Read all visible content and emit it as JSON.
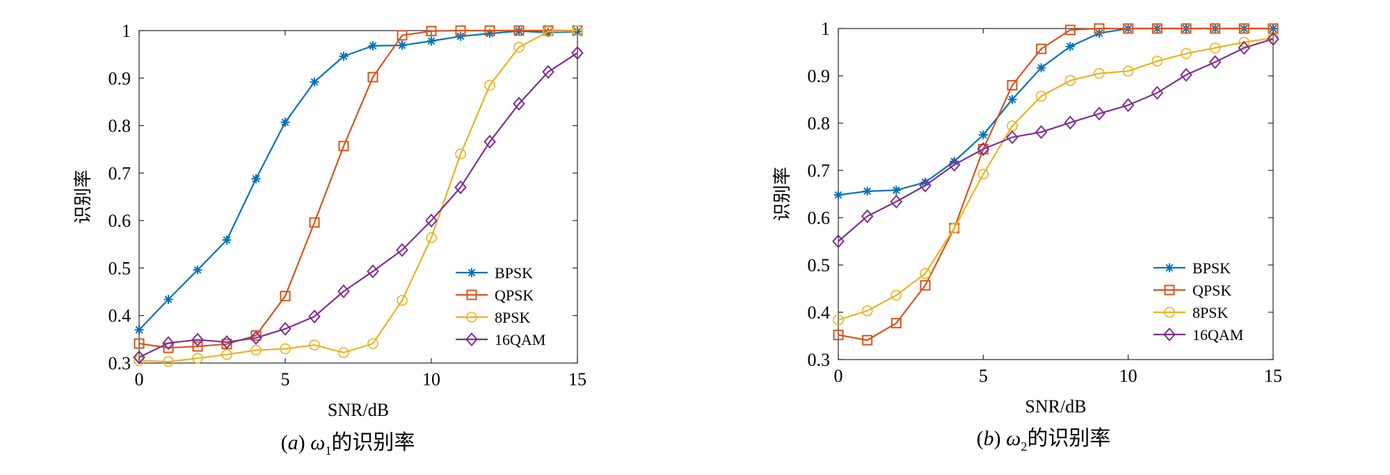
{
  "colors": {
    "BPSK": "#0072BD",
    "QPSK": "#D95319",
    "8PSK": "#EDB120",
    "16QAM": "#7E2F8E"
  },
  "chart_data": [
    {
      "type": "line",
      "caption": {
        "prefix": "(",
        "letter": "a",
        "mid": ") ",
        "symbol": "ω",
        "sub": "1",
        "suffix": "的识别率"
      },
      "xlabel": "SNR/dB",
      "ylabel": "识别率",
      "xlim": [
        0,
        15
      ],
      "ylim": [
        0.3,
        1
      ],
      "xticks": [
        0,
        5,
        10,
        15
      ],
      "yticks": [
        0.3,
        0.4,
        0.5,
        0.6,
        0.7,
        0.8,
        0.9,
        1
      ],
      "grid": false,
      "legend_position": "lower-right",
      "x": [
        0,
        1,
        2,
        3,
        4,
        5,
        6,
        7,
        8,
        9,
        10,
        11,
        12,
        13,
        14,
        15
      ],
      "series": [
        {
          "name": "BPSK",
          "marker": "asterisk",
          "values": [
            0.37,
            0.434,
            0.496,
            0.559,
            0.688,
            0.807,
            0.892,
            0.946,
            0.968,
            0.969,
            0.978,
            0.988,
            0.994,
            0.999,
            0.996,
            0.998
          ]
        },
        {
          "name": "QPSK",
          "marker": "square",
          "values": [
            0.341,
            0.332,
            0.335,
            0.34,
            0.358,
            0.441,
            0.596,
            0.757,
            0.902,
            0.99,
            0.999,
            1.0,
            1.0,
            1.0,
            1.0,
            1.0
          ]
        },
        {
          "name": "8PSK",
          "marker": "circle",
          "values": [
            0.305,
            0.303,
            0.31,
            0.318,
            0.327,
            0.33,
            0.338,
            0.322,
            0.341,
            0.432,
            0.564,
            0.74,
            0.885,
            0.965,
            0.998,
            1.0
          ]
        },
        {
          "name": "16QAM",
          "marker": "diamond",
          "values": [
            0.312,
            0.342,
            0.349,
            0.344,
            0.353,
            0.372,
            0.398,
            0.451,
            0.493,
            0.538,
            0.6,
            0.67,
            0.766,
            0.846,
            0.913,
            0.953
          ]
        }
      ]
    },
    {
      "type": "line",
      "caption": {
        "prefix": "(",
        "letter": "b",
        "mid": ") ",
        "symbol": "ω",
        "sub": "2",
        "suffix": "的识别率"
      },
      "xlabel": "SNR/dB",
      "ylabel": "识别率",
      "xlim": [
        0,
        15
      ],
      "ylim": [
        0.3,
        1
      ],
      "xticks": [
        0,
        5,
        10,
        15
      ],
      "yticks": [
        0.3,
        0.4,
        0.5,
        0.6,
        0.7,
        0.8,
        0.9,
        1
      ],
      "grid": false,
      "legend_position": "lower-right",
      "x": [
        0,
        1,
        2,
        3,
        4,
        5,
        6,
        7,
        8,
        9,
        10,
        11,
        12,
        13,
        14,
        15
      ],
      "series": [
        {
          "name": "BPSK",
          "marker": "asterisk",
          "values": [
            0.648,
            0.656,
            0.658,
            0.675,
            0.719,
            0.775,
            0.85,
            0.917,
            0.962,
            0.99,
            1.0,
            1.0,
            1.0,
            1.0,
            1.0,
            1.0
          ]
        },
        {
          "name": "QPSK",
          "marker": "square",
          "values": [
            0.352,
            0.341,
            0.377,
            0.457,
            0.578,
            0.745,
            0.88,
            0.957,
            0.997,
            1.0,
            1.0,
            1.0,
            1.0,
            1.0,
            1.0,
            1.0
          ]
        },
        {
          "name": "8PSK",
          "marker": "circle",
          "values": [
            0.384,
            0.403,
            0.436,
            0.482,
            0.578,
            0.692,
            0.794,
            0.857,
            0.89,
            0.905,
            0.91,
            0.931,
            0.947,
            0.959,
            0.971,
            0.98
          ]
        },
        {
          "name": "16QAM",
          "marker": "diamond",
          "values": [
            0.55,
            0.603,
            0.634,
            0.668,
            0.712,
            0.745,
            0.77,
            0.781,
            0.801,
            0.82,
            0.838,
            0.864,
            0.902,
            0.929,
            0.959,
            0.978
          ]
        }
      ]
    }
  ]
}
